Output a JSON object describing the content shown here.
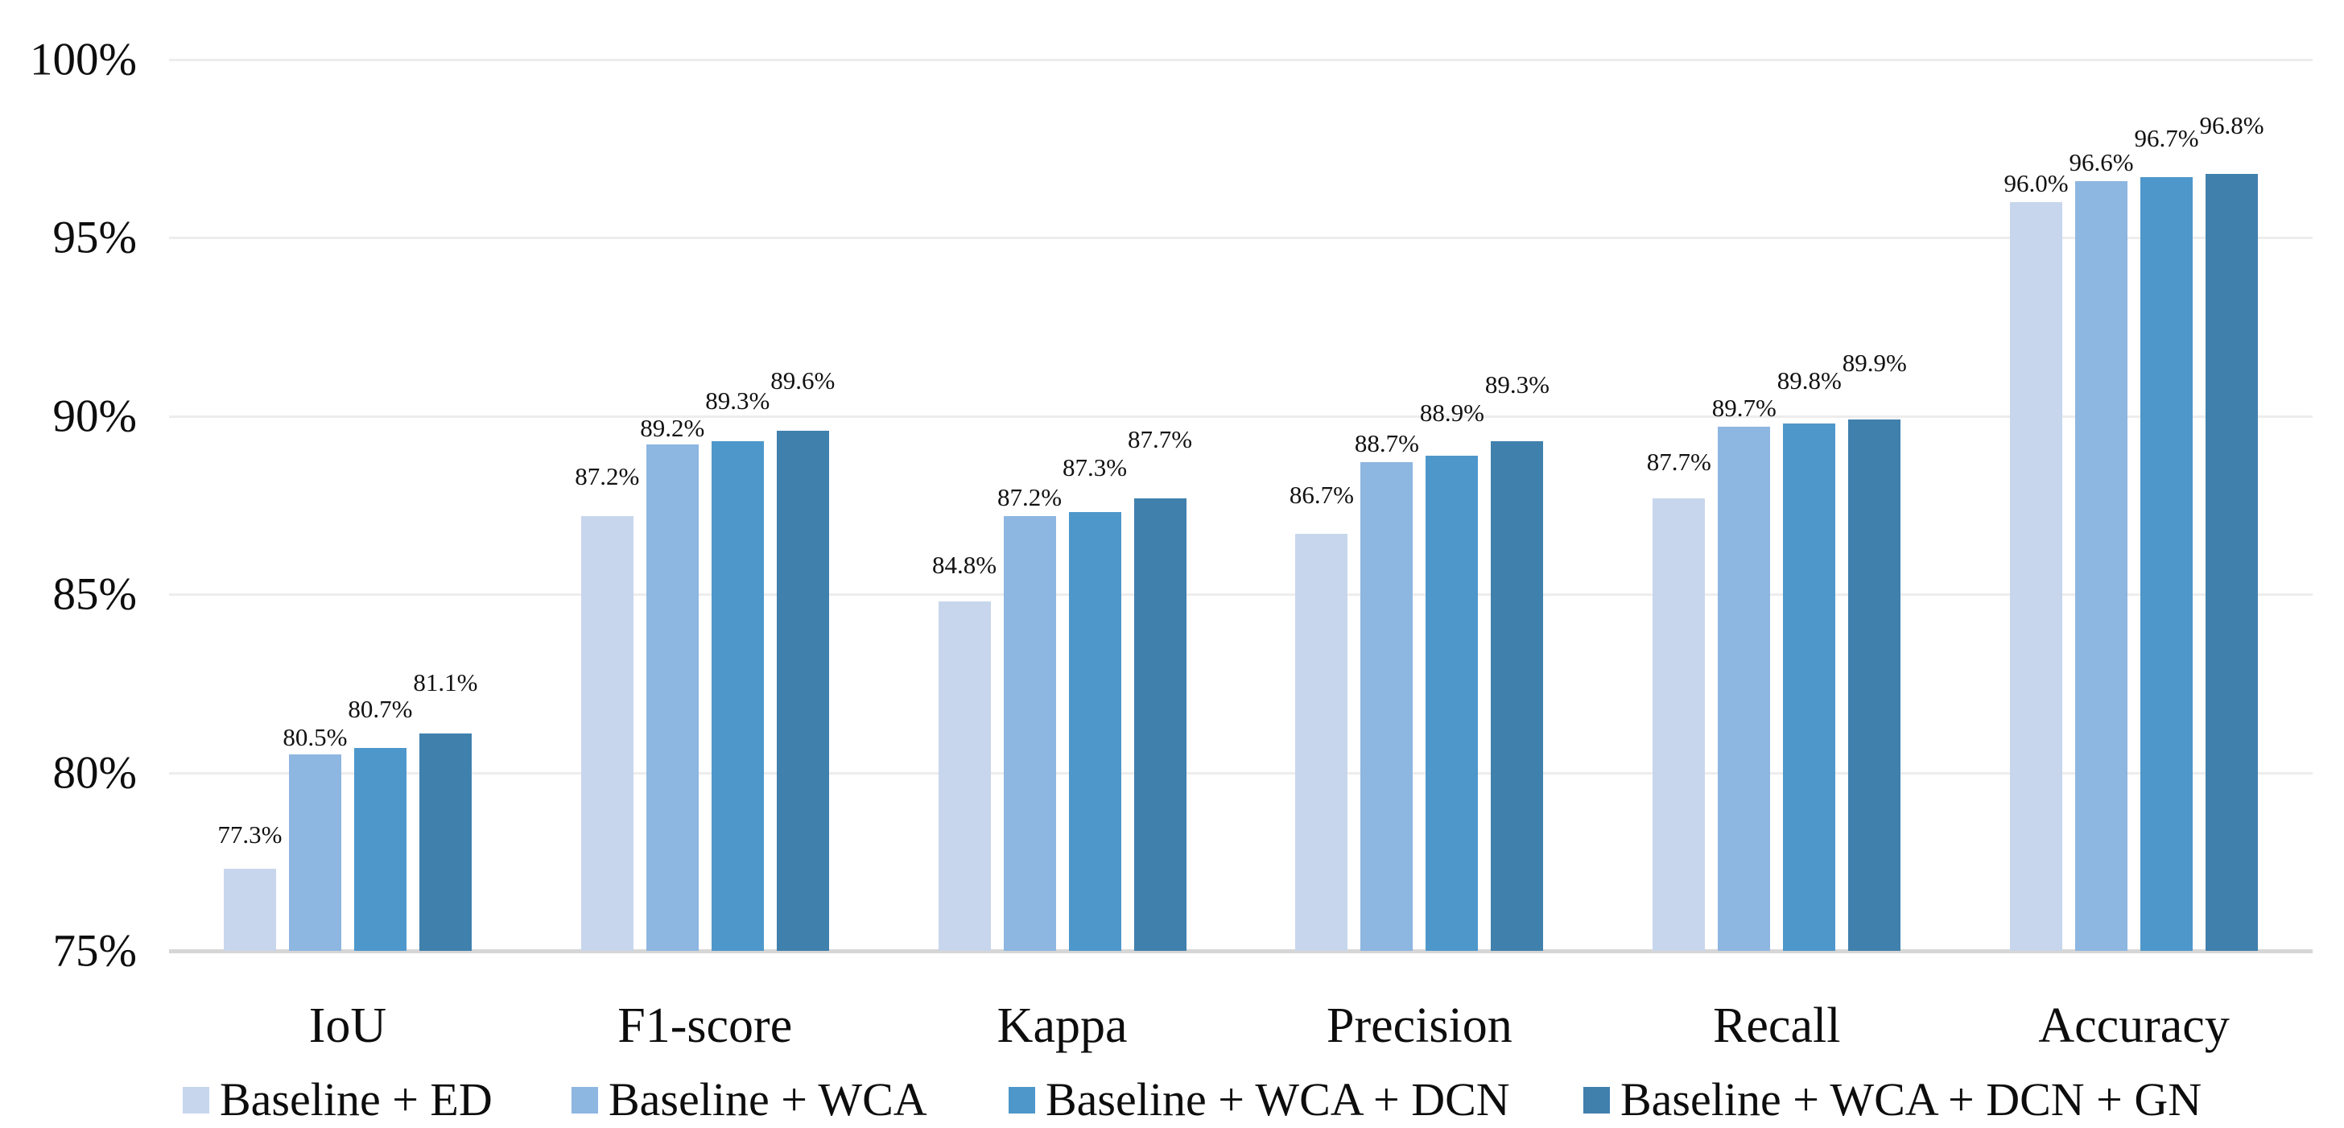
{
  "chart_data": {
    "type": "bar",
    "title": "",
    "xlabel": "",
    "ylabel": "",
    "categories": [
      "IoU",
      "F1-score",
      "Kappa",
      "Precision",
      "Recall",
      "Accuracy"
    ],
    "series": [
      {
        "name": "Baseline + ED",
        "color": "#c7d6ec",
        "values": [
          77.3,
          87.2,
          84.8,
          86.7,
          87.7,
          96.0
        ],
        "labels": [
          "77.3%",
          "87.2%",
          "84.8%",
          "86.7%",
          "87.7%",
          "96.0%"
        ]
      },
      {
        "name": "Baseline + WCA",
        "color": "#8db6e1",
        "values": [
          80.5,
          89.2,
          87.2,
          88.7,
          89.7,
          96.6
        ],
        "labels": [
          "80.5%",
          "89.2%",
          "87.2%",
          "88.7%",
          "89.7%",
          "96.6%"
        ]
      },
      {
        "name": "Baseline + WCA + DCN",
        "color": "#4e97cb",
        "values": [
          80.7,
          89.3,
          87.3,
          88.9,
          89.8,
          96.7
        ],
        "labels": [
          "80.7%",
          "89.3%",
          "87.3%",
          "88.9%",
          "89.8%",
          "96.7%"
        ]
      },
      {
        "name": "Baseline + WCA + DCN + GN",
        "color": "#4080ad",
        "values": [
          81.1,
          89.6,
          87.7,
          89.3,
          89.9,
          96.8
        ],
        "labels": [
          "81.1%",
          "89.6%",
          "87.7%",
          "89.3%",
          "89.9%",
          "96.8%"
        ]
      }
    ],
    "y_axis": {
      "min": 75,
      "max": 100,
      "tick_labels": [
        "100%",
        "95%",
        "90%",
        "85%",
        "80%",
        "75%"
      ],
      "tick_values": [
        100,
        95,
        90,
        85,
        80,
        75
      ]
    },
    "grid": true,
    "legend_position": "bottom",
    "colors": {
      "gridline": "#ededed",
      "axis_line": "#d6d6d6",
      "text": "#0d0d0d",
      "background": "#ffffff"
    }
  }
}
